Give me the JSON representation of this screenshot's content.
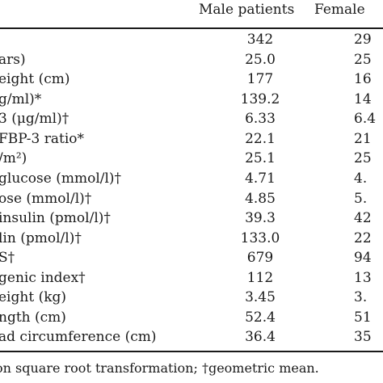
{
  "columns": {
    "male": "Male patients",
    "female": "Female"
  },
  "rows": [
    {
      "label": "",
      "male": "342",
      "female": "29"
    },
    {
      "label": "ars)",
      "male": "25.0",
      "female": "25"
    },
    {
      "label": "eight (cm)",
      "male": "177",
      "female": "16"
    },
    {
      "label": "g/ml)*",
      "male": "139.2",
      "female": "14"
    },
    {
      "label": "3 (μg/ml)†",
      "male": "6.33",
      "female": "6.4"
    },
    {
      "label": "FBP-3 ratio*",
      "male": "22.1",
      "female": "21"
    },
    {
      "label": "/m²)",
      "male": "25.1",
      "female": "25"
    },
    {
      "label": "glucose (mmol/l)†",
      "male": "4.71",
      "female": "4."
    },
    {
      "label": "ose (mmol/l)†",
      "male": "4.85",
      "female": "5."
    },
    {
      "label": "insulin (pmol/l)†",
      "male": "39.3",
      "female": "42"
    },
    {
      "label": "lin (pmol/l)†",
      "male": "133.0",
      "female": "22"
    },
    {
      "label": "S†",
      "male": "679",
      "female": "94"
    },
    {
      "label": "genic index†",
      "male": "112",
      "female": "13"
    },
    {
      "label": "eight (kg)",
      "male": "3.45",
      "female": "3."
    },
    {
      "label": "ngth (cm)",
      "male": "52.4",
      "female": "51"
    },
    {
      "label": "ad circumference (cm)",
      "male": "36.4",
      "female": "35"
    }
  ],
  "footnote": "on square root transformation; †geometric mean."
}
